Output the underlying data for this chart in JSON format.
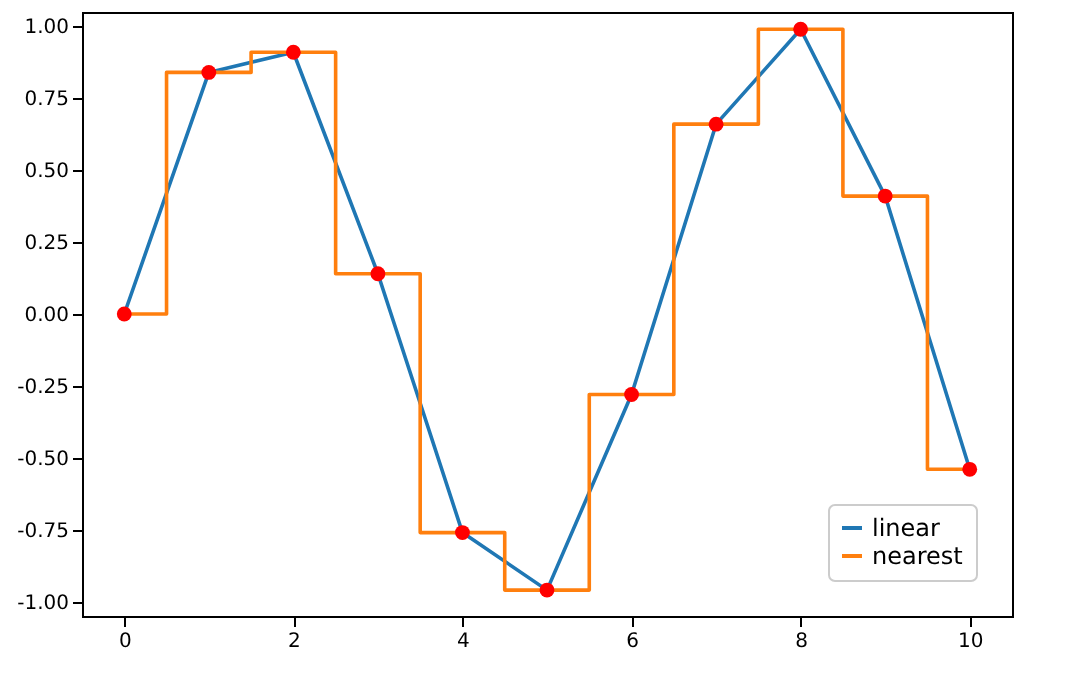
{
  "chart_data": {
    "type": "line",
    "x": [
      0,
      1,
      2,
      3,
      4,
      5,
      6,
      7,
      8,
      9,
      10
    ],
    "xlim": [
      -0.5,
      10.5
    ],
    "xticks": [
      0,
      2,
      4,
      6,
      8,
      10
    ],
    "ylim": [
      -1.05,
      1.05
    ],
    "yticks": [
      {
        "value": -1,
        "label": "-1.00"
      },
      {
        "value": -0.75,
        "label": "-0.75"
      },
      {
        "value": -0.5,
        "label": "-0.50"
      },
      {
        "value": -0.25,
        "label": "-0.25"
      },
      {
        "value": 0,
        "label": "0.00"
      },
      {
        "value": 0.25,
        "label": "0.25"
      },
      {
        "value": 0.5,
        "label": "0.50"
      },
      {
        "value": 0.75,
        "label": "0.75"
      },
      {
        "value": 1,
        "label": "1.00"
      }
    ],
    "legend": "bottom right",
    "series": [
      {
        "name": "linear",
        "type": "line",
        "color": "#1f77b4",
        "values": [
          0,
          0.84,
          0.91,
          0.14,
          -0.76,
          -0.96,
          -0.28,
          0.66,
          0.99,
          0.41,
          -0.54
        ]
      },
      {
        "name": "nearest",
        "type": "step",
        "color": "#ff7f0e",
        "values": [
          0,
          0.84,
          0.91,
          0.14,
          -0.76,
          -0.96,
          -0.28,
          0.66,
          0.99,
          0.41,
          -0.54
        ]
      },
      {
        "type": "scatter",
        "marker": "circle",
        "color": "#ff0000",
        "values": [
          0,
          0.84,
          0.91,
          0.14,
          -0.76,
          -0.96,
          -0.28,
          0.66,
          0.99,
          0.41,
          -0.54
        ]
      }
    ]
  }
}
